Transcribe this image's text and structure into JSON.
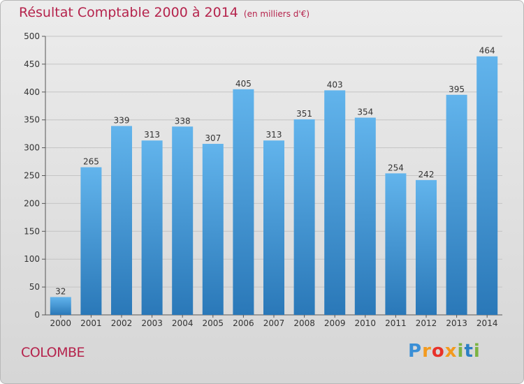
{
  "title": "Résultat Comptable 2000 à 2014",
  "subtitle": "(en milliers d'€)",
  "region": "COLOMBE",
  "logo": {
    "text": "Proxiti"
  },
  "colors": {
    "title": "#b5234c",
    "bar_top": "#62b4ec",
    "bar_bottom": "#2a78b8",
    "grid": "#c4c4c4"
  },
  "chart_data": {
    "type": "bar",
    "title": "Résultat Comptable 2000 à 2014",
    "subtitle": "(en milliers d'€)",
    "xlabel": "",
    "ylabel": "",
    "categories": [
      "2000",
      "2001",
      "2002",
      "2003",
      "2004",
      "2005",
      "2006",
      "2007",
      "2008",
      "2009",
      "2010",
      "2011",
      "2012",
      "2013",
      "2014"
    ],
    "values": [
      32,
      265,
      339,
      313,
      338,
      307,
      405,
      313,
      351,
      403,
      354,
      254,
      242,
      395,
      464
    ],
    "ylim": [
      0,
      500
    ],
    "yticks": [
      0,
      50,
      100,
      150,
      200,
      250,
      300,
      350,
      400,
      450,
      500
    ],
    "grid": true,
    "data_labels": true,
    "legend": false
  }
}
